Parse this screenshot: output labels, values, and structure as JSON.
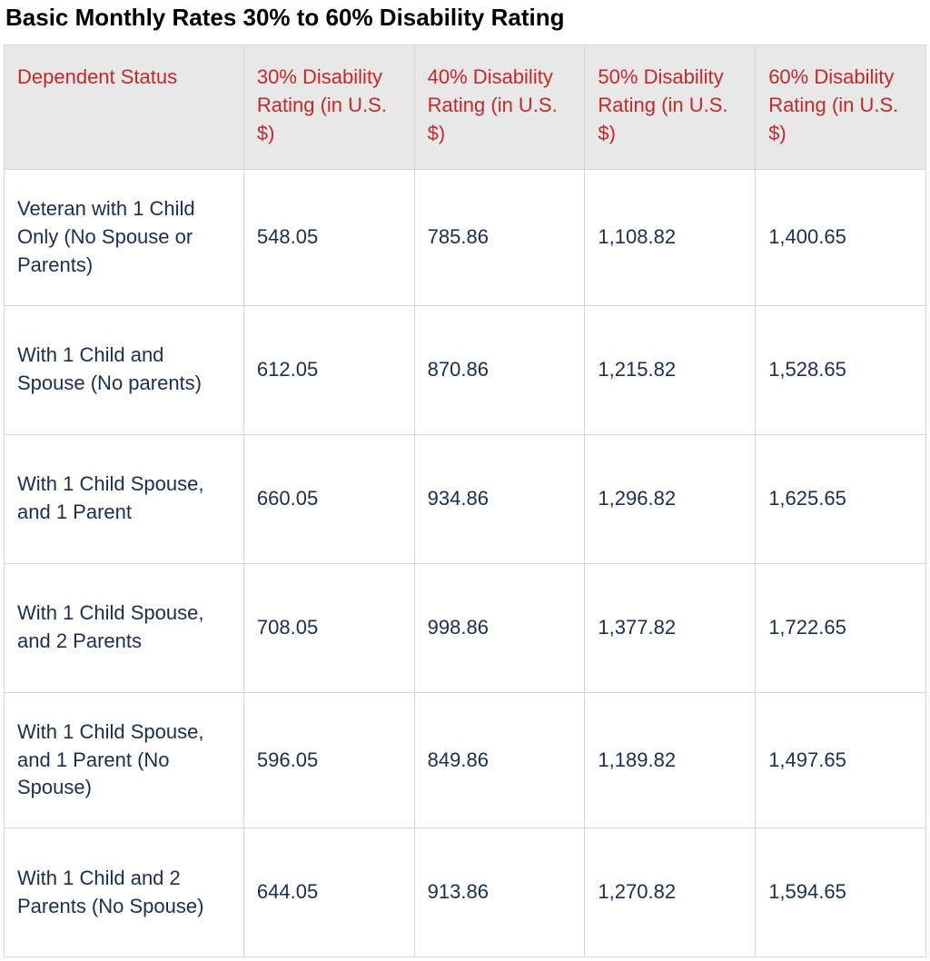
{
  "title": "Basic Monthly Rates 30% to 60% Disability Rating",
  "columns": [
    "Dependent Status",
    "30% Disability Rating (in U.S. $)",
    "40% Disability Rating (in U.S. $)",
    "50% Disability Rating (in U.S. $)",
    "60% Disability Rating (in U.S. $)"
  ],
  "rows": [
    {
      "label": "Veteran with 1 Child Only (No Spouse or Parents)",
      "v30": "548.05",
      "v40": "785.86",
      "v50": "1,108.82",
      "v60": "1,400.65"
    },
    {
      "label": "With 1 Child and Spouse (No parents)",
      "v30": "612.05",
      "v40": "870.86",
      "v50": "1,215.82",
      "v60": "1,528.65"
    },
    {
      "label": "With 1 Child Spouse, and 1 Parent",
      "v30": "660.05",
      "v40": "934.86",
      "v50": "1,296.82",
      "v60": "1,625.65"
    },
    {
      "label": "With 1 Child Spouse, and 2 Parents",
      "v30": "708.05",
      "v40": "998.86",
      "v50": "1,377.82",
      "v60": "1,722.65"
    },
    {
      "label": "With 1 Child Spouse, and 1 Parent (No Spouse)",
      "v30": "596.05",
      "v40": "849.86",
      "v50": "1,189.82",
      "v60": "1,497.65"
    },
    {
      "label": "With 1 Child and 2 Parents (No Spouse)",
      "v30": "644.05",
      "v40": "913.86",
      "v50": "1,270.82",
      "v60": "1,594.65"
    }
  ],
  "style": {
    "header_bg": "#e9e8e8",
    "header_color": "#c42828",
    "cell_color": "#1a2e52",
    "border_color": "#d5d5d5",
    "title_color": "#000000",
    "font_family": "-apple-system",
    "title_fontsize": 26,
    "cell_fontsize": 22
  }
}
